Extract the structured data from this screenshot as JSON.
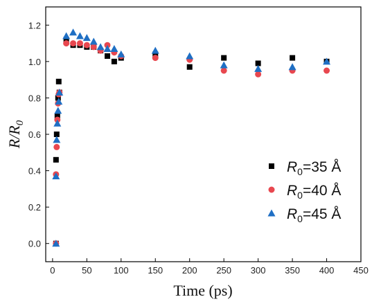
{
  "chart_data": {
    "type": "scatter",
    "title": "",
    "xlabel": "Time (ps)",
    "ylabel": {
      "main": "R/R",
      "sub": "0"
    },
    "xlim": [
      -10,
      450
    ],
    "ylim": [
      -0.1,
      1.3
    ],
    "xticks": [
      0,
      50,
      100,
      150,
      200,
      250,
      300,
      350,
      400,
      450
    ],
    "yticks": [
      0.0,
      0.2,
      0.4,
      0.6,
      0.8,
      1.0,
      1.2
    ],
    "xtick_labels": [
      "0",
      "50",
      "100",
      "150",
      "200",
      "250",
      "300",
      "350",
      "400",
      "450"
    ],
    "ytick_labels": [
      "0.0",
      "0.2",
      "0.4",
      "0.6",
      "0.8",
      "1.0",
      "1.2"
    ],
    "grid": false,
    "legend_position": "lower-right",
    "series": [
      {
        "name": {
          "main": "R",
          "sub": "0",
          "tail": "=35 Å"
        },
        "marker": "square",
        "color": "#000000",
        "x": [
          5,
          5,
          6,
          7,
          8,
          9,
          10,
          20,
          30,
          40,
          50,
          60,
          70,
          80,
          90,
          100,
          150,
          200,
          250,
          300,
          350,
          400
        ],
        "y": [
          0.0,
          0.46,
          0.6,
          0.7,
          0.8,
          0.89,
          0.83,
          1.12,
          1.09,
          1.09,
          1.08,
          1.08,
          1.06,
          1.03,
          1.0,
          1.02,
          1.04,
          0.97,
          1.02,
          0.99,
          1.02,
          1.0
        ]
      },
      {
        "name": {
          "main": "R",
          "sub": "0",
          "tail": "=40 Å"
        },
        "marker": "circle",
        "color": "#e8474f",
        "x": [
          5,
          5,
          6,
          7,
          8,
          9,
          10,
          20,
          30,
          40,
          50,
          60,
          70,
          80,
          90,
          100,
          150,
          200,
          250,
          300,
          350,
          400
        ],
        "y": [
          0.0,
          0.38,
          0.53,
          0.68,
          0.77,
          0.82,
          0.83,
          1.1,
          1.1,
          1.1,
          1.09,
          1.08,
          1.06,
          1.09,
          1.05,
          1.03,
          1.02,
          1.01,
          0.95,
          0.93,
          0.95,
          0.95
        ]
      },
      {
        "name": {
          "main": "R",
          "sub": "0",
          "tail": "=45 Å"
        },
        "marker": "triangle",
        "color": "#1f6fc4",
        "x": [
          5,
          5,
          6,
          7,
          8,
          9,
          10,
          20,
          30,
          40,
          50,
          60,
          70,
          80,
          90,
          100,
          150,
          200,
          250,
          300,
          350,
          400
        ],
        "y": [
          0.0,
          0.37,
          0.57,
          0.66,
          0.73,
          0.78,
          0.83,
          1.14,
          1.16,
          1.14,
          1.13,
          1.11,
          1.08,
          1.07,
          1.07,
          1.04,
          1.06,
          1.03,
          0.98,
          0.96,
          0.97,
          1.0
        ]
      }
    ]
  }
}
